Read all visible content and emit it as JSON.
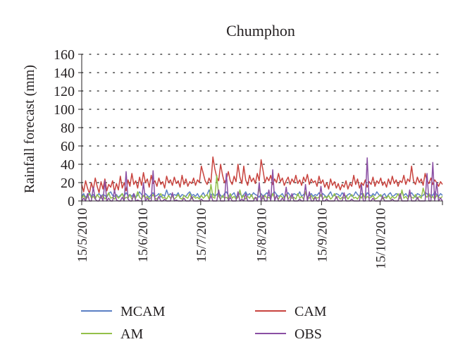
{
  "chart_data": {
    "type": "line",
    "title": "Chumphon",
    "ylabel": "Rainfall forecast (mm)",
    "xlabel": "",
    "ylim": [
      0,
      160
    ],
    "yticks": [
      0,
      20,
      40,
      60,
      80,
      100,
      120,
      140,
      160
    ],
    "grid": "dotted horizontal",
    "legend_position": "bottom",
    "x_start": "2010-05-15",
    "x_end": "2010-11-16",
    "xtick_labels": [
      "15/5/2010",
      "15/6/2010",
      "15/7/2010",
      "15/8/2010",
      "15/9/2010",
      "15/10/2010"
    ],
    "xtick_dates": [
      "2010-05-15",
      "2010-06-15",
      "2010-07-15",
      "2010-08-15",
      "2010-09-15",
      "2010-10-15"
    ],
    "series": [
      {
        "name": "MCAM",
        "color": "#5b7fc4",
        "values": [
          5,
          8,
          4,
          6,
          9,
          5,
          7,
          4,
          6,
          8,
          5,
          7,
          6,
          4,
          8,
          10,
          6,
          5,
          7,
          4,
          6,
          8,
          5,
          9,
          6,
          7,
          5,
          8,
          4,
          6,
          10,
          7,
          5,
          8,
          6,
          4,
          7,
          9,
          5,
          6,
          8,
          4,
          7,
          5,
          12,
          6,
          8,
          5,
          7,
          6,
          9,
          4,
          7,
          6,
          5,
          8,
          10,
          6,
          7,
          5,
          8,
          4,
          6,
          9,
          5,
          7,
          12,
          6,
          8,
          5,
          7,
          9,
          6,
          4,
          8,
          10,
          6,
          5,
          7,
          9,
          4,
          6,
          8,
          5,
          7,
          10,
          6,
          8,
          5,
          9,
          7,
          6,
          4,
          8,
          5,
          7,
          9,
          6,
          5,
          8,
          10,
          7,
          5,
          6,
          8,
          4,
          7,
          9,
          6,
          5,
          8,
          7,
          6,
          10,
          5,
          7,
          9,
          4,
          6,
          8,
          5,
          7,
          6,
          9,
          5,
          8,
          6,
          4,
          7,
          10,
          5,
          6,
          8,
          7,
          5,
          9,
          6,
          4,
          7,
          8,
          5,
          6,
          10,
          7,
          5,
          8,
          6,
          4,
          9,
          7,
          5,
          8,
          6,
          10,
          7,
          5,
          6,
          8,
          4,
          7,
          9,
          5,
          6,
          8,
          7,
          5,
          10,
          6,
          8,
          5,
          7,
          9,
          6,
          4,
          8,
          7,
          5,
          6,
          9,
          8,
          5,
          7,
          6,
          10,
          7,
          5,
          8,
          6
        ]
      },
      {
        "name": "CAM",
        "color": "#c8433e",
        "values": [
          18,
          10,
          22,
          14,
          8,
          20,
          12,
          25,
          16,
          9,
          21,
          13,
          24,
          11,
          18,
          15,
          22,
          10,
          19,
          12,
          27,
          14,
          20,
          11,
          23,
          16,
          30,
          18,
          22,
          14,
          26,
          17,
          31,
          20,
          24,
          15,
          28,
          19,
          22,
          16,
          25,
          18,
          21,
          14,
          27,
          20,
          23,
          17,
          26,
          19,
          22,
          15,
          28,
          18,
          24,
          16,
          21,
          19,
          25,
          17,
          23,
          20,
          38,
          30,
          22,
          18,
          25,
          20,
          48,
          35,
          26,
          22,
          40,
          28,
          20,
          24,
          32,
          22,
          18,
          27,
          21,
          40,
          26,
          19,
          38,
          23,
          17,
          28,
          21,
          25,
          19,
          30,
          22,
          45,
          33,
          20,
          26,
          22,
          28,
          18,
          24,
          20,
          30,
          21,
          25,
          17,
          22,
          26,
          18,
          24,
          20,
          28,
          19,
          23,
          17,
          26,
          21,
          29,
          18,
          24,
          20,
          22,
          16,
          27,
          19,
          23,
          15,
          20,
          13,
          24,
          17,
          21,
          14,
          19,
          12,
          18,
          15,
          22,
          13,
          19,
          16,
          28,
          18,
          24,
          14,
          20,
          17,
          23,
          15,
          21,
          18,
          26,
          16,
          22,
          19,
          25,
          17,
          21,
          15,
          24,
          18,
          27,
          19,
          23,
          16,
          22,
          20,
          28,
          18,
          24,
          21,
          38,
          22,
          18,
          26,
          20,
          24,
          17,
          30,
          22,
          19,
          25,
          18,
          23,
          20,
          16,
          21,
          18
        ]
      },
      {
        "name": "AM",
        "color": "#93c049",
        "values": [
          3,
          6,
          2,
          4,
          8,
          3,
          5,
          2,
          7,
          4,
          3,
          6,
          2,
          5,
          9,
          3,
          4,
          2,
          6,
          3,
          5,
          8,
          2,
          4,
          3,
          7,
          2,
          5,
          3,
          10,
          4,
          2,
          6,
          3,
          5,
          2,
          4,
          7,
          3,
          2,
          5,
          8,
          3,
          4,
          2,
          6,
          3,
          5,
          2,
          4,
          7,
          3,
          2,
          6,
          4,
          3,
          8,
          2,
          5,
          3,
          4,
          2,
          6,
          3,
          5,
          7,
          2,
          18,
          4,
          3,
          28,
          5,
          2,
          6,
          3,
          4,
          2,
          8,
          3,
          5,
          2,
          4,
          12,
          3,
          6,
          2,
          5,
          3,
          7,
          2,
          4,
          3,
          14,
          5,
          2,
          6,
          3,
          4,
          2,
          8,
          3,
          5,
          2,
          6,
          4,
          3,
          7,
          2,
          5,
          3,
          4,
          2,
          8,
          3,
          5,
          2,
          10,
          4,
          3,
          6,
          2,
          5,
          3,
          4,
          7,
          2,
          5,
          3,
          6,
          2,
          4,
          8,
          3,
          5,
          2,
          4,
          3,
          6,
          2,
          5,
          7,
          3,
          4,
          2,
          6,
          3,
          8,
          2,
          5,
          3,
          4,
          6,
          2,
          3,
          5,
          7,
          2,
          4,
          3,
          6,
          2,
          5,
          3,
          4,
          8,
          2,
          12,
          3,
          5,
          2,
          6,
          4,
          3,
          7,
          2,
          5,
          3,
          14,
          6,
          4,
          8,
          3,
          5,
          2,
          6,
          4,
          3,
          5
        ]
      },
      {
        "name": "OBS",
        "color": "#8a4fa3",
        "values": [
          0,
          3,
          0,
          8,
          0,
          0,
          15,
          2,
          0,
          0,
          6,
          0,
          22,
          0,
          3,
          0,
          0,
          12,
          1,
          0,
          0,
          4,
          0,
          32,
          2,
          0,
          0,
          8,
          0,
          1,
          0,
          0,
          20,
          0,
          3,
          0,
          0,
          33,
          1,
          0,
          5,
          0,
          0,
          2,
          0,
          0,
          0,
          9,
          0,
          1,
          0,
          0,
          0,
          3,
          0,
          0,
          0,
          5,
          0,
          0,
          0,
          0,
          2,
          0,
          0,
          0,
          0,
          6,
          0,
          0,
          0,
          12,
          0,
          0,
          0,
          30,
          0,
          4,
          0,
          0,
          0,
          10,
          0,
          2,
          0,
          8,
          0,
          0,
          0,
          0,
          4,
          0,
          20,
          0,
          6,
          0,
          0,
          12,
          0,
          34,
          0,
          6,
          0,
          0,
          3,
          0,
          15,
          0,
          0,
          8,
          0,
          0,
          0,
          2,
          0,
          0,
          18,
          0,
          10,
          0,
          0,
          4,
          0,
          0,
          16,
          0,
          0,
          2,
          0,
          0,
          0,
          0,
          5,
          0,
          0,
          0,
          9,
          0,
          0,
          0,
          2,
          0,
          0,
          0,
          0,
          18,
          0,
          0,
          47,
          0,
          0,
          3,
          0,
          0,
          0,
          0,
          5,
          0,
          0,
          0,
          0,
          2,
          0,
          0,
          0,
          8,
          0,
          0,
          0,
          0,
          12,
          0,
          0,
          0,
          4,
          0,
          0,
          0,
          0,
          30,
          0,
          0,
          42,
          0,
          20,
          0,
          3,
          0
        ]
      }
    ]
  }
}
